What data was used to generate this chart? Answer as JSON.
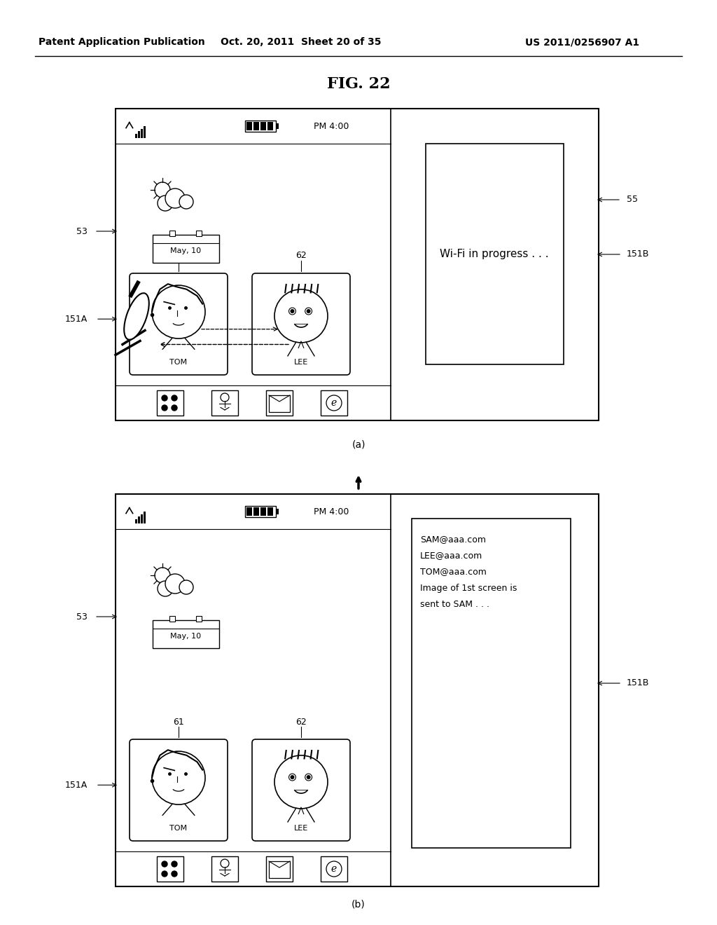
{
  "bg_color": "#ffffff",
  "header_left": "Patent Application Publication",
  "header_mid": "Oct. 20, 2011  Sheet 20 of 35",
  "header_right": "US 2011/0256907 A1",
  "fig_title": "FIG. 22",
  "label_a": "(a)",
  "label_b": "(b)",
  "status_text": "PM 4:00",
  "date_text": "May, 10",
  "wifi_text": "Wi-Fi in progress . . .",
  "email_text_lines": [
    "SAM@aaa.com",
    "LEE@aaa.com",
    "TOM@aaa.com",
    "Image of 1st screen is",
    "sent to SAM . . ."
  ],
  "label_53_a": "53",
  "label_151A_a": "151A",
  "label_55_a": "55",
  "label_151B_a": "151B",
  "label_53_b": "53",
  "label_151A_b": "151A",
  "label_151B_b": "151B",
  "label_61": "61",
  "label_62": "62",
  "colors": {
    "black": "#000000",
    "white": "#ffffff",
    "light_gray": "#f0f0f0"
  }
}
